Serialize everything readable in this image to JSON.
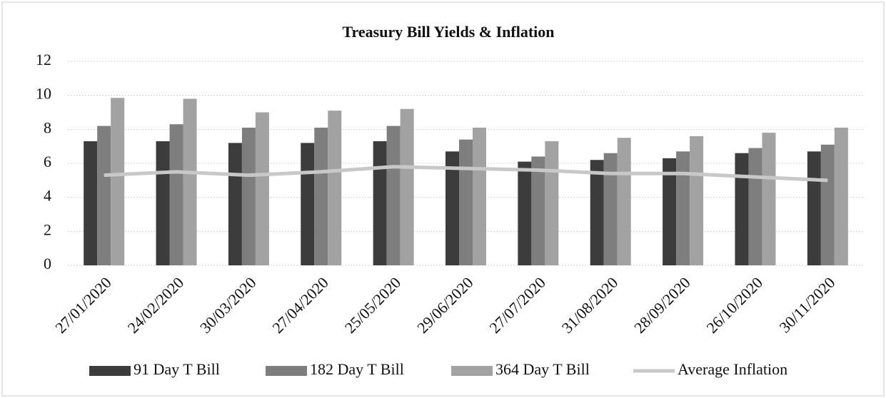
{
  "chart_data": {
    "type": "bar",
    "title": "Treasury Bill Yields & Inflation",
    "categories": [
      "27/01/2020",
      "24/02/2020",
      "30/03/2020",
      "27/04/2020",
      "25/05/2020",
      "29/06/2020",
      "27/07/2020",
      "31/08/2020",
      "28/09/2020",
      "26/10/2020",
      "30/11/2020"
    ],
    "series": [
      {
        "name": "91 Day T Bill",
        "type": "bar",
        "color": "#3c3c3c",
        "values": [
          7.3,
          7.3,
          7.2,
          7.2,
          7.3,
          6.7,
          6.1,
          6.2,
          6.3,
          6.6,
          6.7
        ]
      },
      {
        "name": "182 Day T Bill",
        "type": "bar",
        "color": "#7e7e7e",
        "values": [
          8.2,
          8.3,
          8.1,
          8.1,
          8.2,
          7.4,
          6.4,
          6.6,
          6.7,
          6.9,
          7.1
        ]
      },
      {
        "name": "364 Day T Bill",
        "type": "bar",
        "color": "#a2a2a2",
        "values": [
          9.85,
          9.8,
          9.0,
          9.1,
          9.2,
          8.1,
          7.3,
          7.5,
          7.6,
          7.8,
          8.1
        ]
      },
      {
        "name": "Average Inflation",
        "type": "line",
        "color": "#c8c8c8",
        "values": [
          5.3,
          5.5,
          5.3,
          5.5,
          5.8,
          5.7,
          5.6,
          5.4,
          5.4,
          5.2,
          5.0
        ]
      }
    ],
    "ylim": [
      0,
      12
    ],
    "yticks": [
      0,
      2,
      4,
      6,
      8,
      10,
      12
    ],
    "grid": true
  }
}
